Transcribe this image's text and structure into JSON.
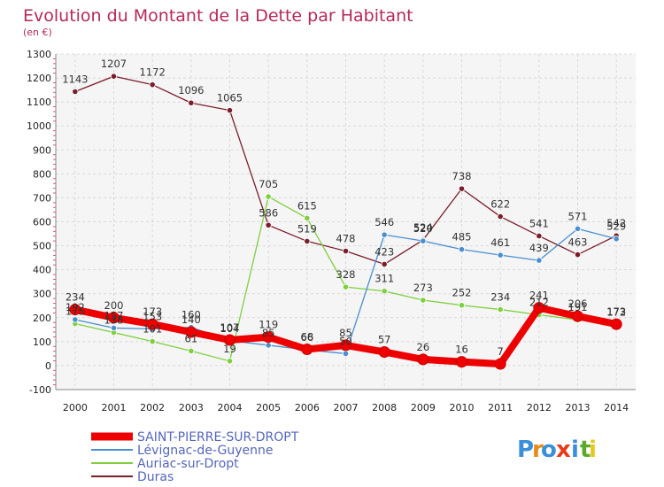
{
  "chart_data": {
    "type": "line",
    "title": "Evolution du Montant de la Dette par Habitant",
    "subtitle": "(en €)",
    "xlabel": "",
    "ylabel": "",
    "x": [
      "2000",
      "2001",
      "2002",
      "2003",
      "2004",
      "2005",
      "2006",
      "2007",
      "2008",
      "2009",
      "2010",
      "2011",
      "2012",
      "2013",
      "2014"
    ],
    "ylim": [
      -100,
      1300
    ],
    "yticks": [
      -100,
      0,
      100,
      200,
      300,
      400,
      500,
      600,
      700,
      800,
      900,
      1000,
      1100,
      1200,
      1300
    ],
    "grid": true,
    "legend_position": "bottom-left",
    "series": [
      {
        "name": "Duras",
        "color": "#7a1e2a",
        "values": [
          1143,
          1207,
          1172,
          1096,
          1065,
          586,
          519,
          478,
          423,
          524,
          738,
          622,
          541,
          463,
          542
        ]
      },
      {
        "name": "Auriac-sur-Dropt",
        "color": "#7fcf3f",
        "values": [
          175,
          138,
          101,
          61,
          19,
          705,
          615,
          328,
          311,
          273,
          252,
          234,
          212,
          191,
          172
        ]
      },
      {
        "name": "Lévignac-de-Guyenne",
        "color": "#4a8fd0",
        "values": [
          192,
          157,
          153,
          160,
          104,
          85,
          66,
          50,
          546,
          520,
          485,
          461,
          439,
          571,
          529
        ]
      },
      {
        "name": "SAINT-PIERRE-SUR-DROPT",
        "color": "#ee0000",
        "values": [
          234,
          200,
          173,
          140,
          107,
          119,
          68,
          85,
          57,
          26,
          16,
          7,
          241,
          206,
          173
        ]
      }
    ]
  },
  "legend": {
    "items": [
      {
        "name": "SAINT-PIERRE-SUR-DROPT",
        "color": "#ee0000"
      },
      {
        "name": "Lévignac-de-Guyenne",
        "color": "#4a8fd0"
      },
      {
        "name": "Auriac-sur-Dropt",
        "color": "#7fcf3f"
      },
      {
        "name": "Duras",
        "color": "#7a1e2a"
      }
    ]
  },
  "logo": {
    "letters": [
      "P",
      "r",
      "o",
      "x",
      "i",
      "t",
      "i"
    ],
    "colors": [
      "#3a8fd8",
      "#e88a1a",
      "#3a8fd8",
      "#e83a1a",
      "#3a8fd8",
      "#5aaa2a",
      "#e8c81a"
    ]
  }
}
